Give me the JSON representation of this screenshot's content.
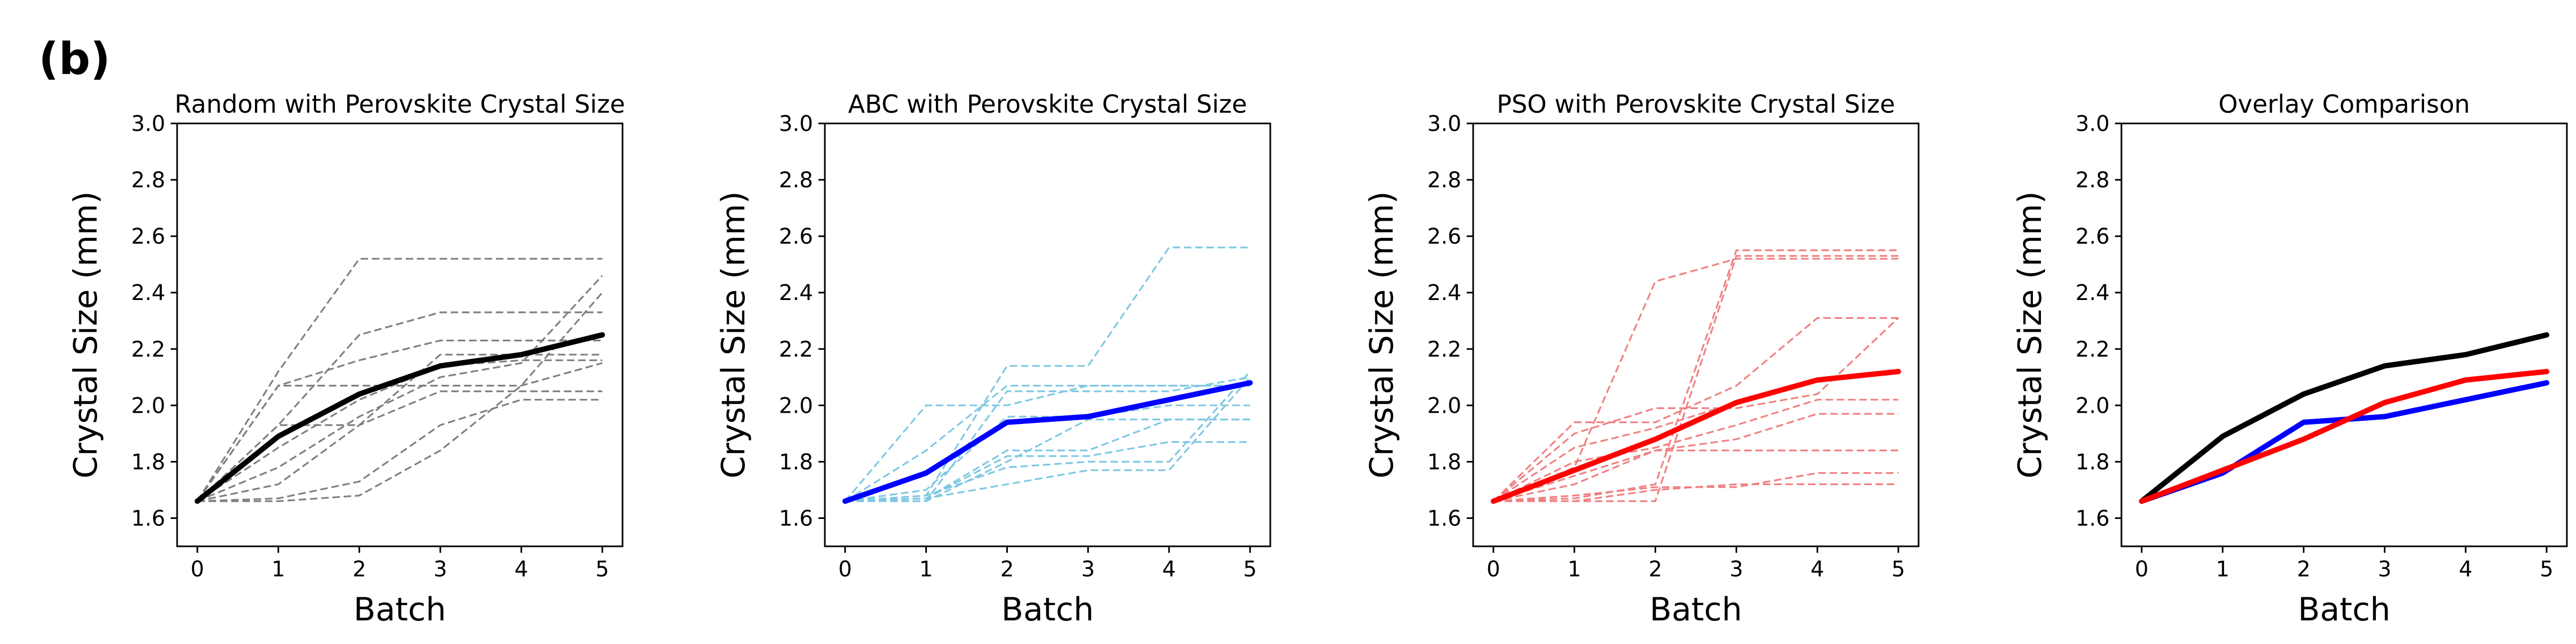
{
  "panel_label": "(b)",
  "chart_data": [
    {
      "type": "line",
      "title": "Random with Perovskite Crystal Size",
      "xlabel": "Batch",
      "ylabel": "Crystal Size (mm)",
      "x": [
        0,
        1,
        2,
        3,
        4,
        5
      ],
      "xticks": [
        "0",
        "1",
        "2",
        "3",
        "4",
        "5"
      ],
      "yticks": [
        "1.6",
        "1.8",
        "2.0",
        "2.2",
        "2.4",
        "2.6",
        "2.8",
        "3.0"
      ],
      "xlim": [
        -0.25,
        5.25
      ],
      "ylim": [
        1.5,
        3.0
      ],
      "grid": false,
      "colors": {
        "trial": "#7f7f7f",
        "mean": "#000000"
      },
      "trials": [
        [
          1.66,
          2.12,
          2.52,
          2.52,
          2.52,
          2.52
        ],
        [
          1.66,
          1.93,
          2.25,
          2.33,
          2.33,
          2.33
        ],
        [
          1.66,
          2.07,
          2.16,
          2.23,
          2.23,
          2.23
        ],
        [
          1.66,
          1.93,
          1.93,
          2.18,
          2.18,
          2.18
        ],
        [
          1.66,
          1.85,
          2.02,
          2.14,
          2.16,
          2.16
        ],
        [
          1.66,
          1.78,
          1.96,
          2.1,
          2.15,
          2.46
        ],
        [
          1.66,
          1.72,
          1.93,
          2.05,
          2.05,
          2.05
        ],
        [
          1.66,
          1.67,
          1.73,
          1.93,
          2.02,
          2.02
        ],
        [
          1.66,
          1.66,
          1.68,
          1.84,
          2.07,
          2.4
        ],
        [
          1.66,
          2.07,
          2.07,
          2.07,
          2.07,
          2.15
        ]
      ],
      "mean": [
        1.66,
        1.89,
        2.04,
        2.14,
        2.18,
        2.25
      ]
    },
    {
      "type": "line",
      "title": "ABC with Perovskite Crystal Size",
      "xlabel": "Batch",
      "ylabel": "Crystal Size (mm)",
      "x": [
        0,
        1,
        2,
        3,
        4,
        5
      ],
      "xticks": [
        "0",
        "1",
        "2",
        "3",
        "4",
        "5"
      ],
      "yticks": [
        "1.6",
        "1.8",
        "2.0",
        "2.2",
        "2.4",
        "2.6",
        "2.8",
        "3.0"
      ],
      "xlim": [
        -0.25,
        5.25
      ],
      "ylim": [
        1.5,
        3.0
      ],
      "grid": false,
      "colors": {
        "trial": "#7ec8e3",
        "mean": "#0000ff"
      },
      "trials": [
        [
          1.66,
          1.68,
          2.14,
          2.14,
          2.56,
          2.56
        ],
        [
          1.66,
          2.0,
          2.0,
          2.07,
          2.07,
          2.07
        ],
        [
          1.66,
          1.84,
          2.07,
          2.07,
          2.07,
          2.07
        ],
        [
          1.66,
          1.66,
          2.05,
          2.05,
          2.05,
          2.1
        ],
        [
          1.66,
          1.7,
          1.96,
          1.96,
          2.0,
          2.0
        ],
        [
          1.66,
          1.67,
          1.84,
          1.84,
          1.95,
          1.95
        ],
        [
          1.66,
          1.67,
          1.82,
          1.82,
          1.87,
          1.87
        ],
        [
          1.66,
          1.68,
          1.78,
          1.8,
          1.8,
          2.12
        ],
        [
          1.66,
          1.67,
          1.72,
          1.77,
          1.77,
          2.1
        ],
        [
          1.66,
          1.66,
          1.8,
          1.95,
          1.95,
          1.95
        ]
      ],
      "mean": [
        1.66,
        1.76,
        1.94,
        1.96,
        2.02,
        2.08
      ]
    },
    {
      "type": "line",
      "title": "PSO with Perovskite Crystal Size",
      "xlabel": "Batch",
      "ylabel": "Crystal Size (mm)",
      "x": [
        0,
        1,
        2,
        3,
        4,
        5
      ],
      "xticks": [
        "0",
        "1",
        "2",
        "3",
        "4",
        "5"
      ],
      "yticks": [
        "1.6",
        "1.8",
        "2.0",
        "2.2",
        "2.4",
        "2.6",
        "2.8",
        "3.0"
      ],
      "xlim": [
        -0.25,
        5.25
      ],
      "ylim": [
        1.5,
        3.0
      ],
      "grid": false,
      "colors": {
        "trial": "#f08080",
        "mean": "#ff0000"
      },
      "trials": [
        [
          1.66,
          1.67,
          1.72,
          2.55,
          2.55,
          2.55
        ],
        [
          1.66,
          1.66,
          1.66,
          2.53,
          2.53,
          2.53
        ],
        [
          1.66,
          1.78,
          2.44,
          2.52,
          2.52,
          2.52
        ],
        [
          1.66,
          1.94,
          1.94,
          2.07,
          2.31,
          2.31
        ],
        [
          1.66,
          1.9,
          1.99,
          1.99,
          2.04,
          2.31
        ],
        [
          1.66,
          1.85,
          1.92,
          2.01,
          2.09,
          2.12
        ],
        [
          1.66,
          1.8,
          1.85,
          1.93,
          2.02,
          2.02
        ],
        [
          1.66,
          1.75,
          1.84,
          1.88,
          1.97,
          1.97
        ],
        [
          1.66,
          1.72,
          1.84,
          1.84,
          1.84,
          1.84
        ],
        [
          1.66,
          1.68,
          1.71,
          1.71,
          1.76,
          1.76
        ],
        [
          1.66,
          1.66,
          1.7,
          1.72,
          1.72,
          1.72
        ]
      ],
      "mean": [
        1.66,
        1.77,
        1.88,
        2.01,
        2.09,
        2.12
      ]
    },
    {
      "type": "line",
      "title": "Overlay Comparison",
      "xlabel": "Batch",
      "ylabel": "Crystal Size (mm)",
      "x": [
        0,
        1,
        2,
        3,
        4,
        5
      ],
      "xticks": [
        "0",
        "1",
        "2",
        "3",
        "4",
        "5"
      ],
      "yticks": [
        "1.6",
        "1.8",
        "2.0",
        "2.2",
        "2.4",
        "2.6",
        "2.8",
        "3.0"
      ],
      "xlim": [
        -0.25,
        5.25
      ],
      "ylim": [
        1.5,
        3.0
      ],
      "grid": false,
      "series": [
        {
          "color": "#000000",
          "values": [
            1.66,
            1.89,
            2.04,
            2.14,
            2.18,
            2.25
          ]
        },
        {
          "color": "#0000ff",
          "values": [
            1.66,
            1.76,
            1.94,
            1.96,
            2.02,
            2.08
          ]
        },
        {
          "color": "#ff0000",
          "values": [
            1.66,
            1.77,
            1.88,
            2.01,
            2.09,
            2.12
          ]
        }
      ]
    }
  ]
}
